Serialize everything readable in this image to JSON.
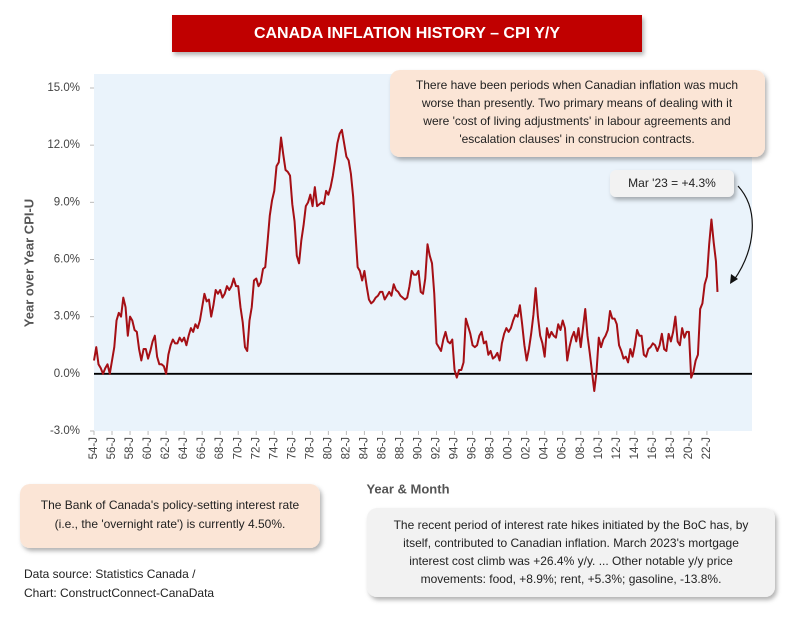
{
  "chart_data": {
    "type": "line",
    "title": "CANADA INFLATION HISTORY – CPI Y/Y",
    "ylabel": "Year over Year CPI-U",
    "xlabel": "Year & Month",
    "color": "#a50f15",
    "annotations": {
      "top": [
        "There have been periods when Canadian inflation was much",
        "worse than presently. Two primary means of dealing with it",
        "were 'cost of living adjustments' in labour agreements and",
        "'escalation clauses' in construcion contracts."
      ],
      "callout": "Mar '23 = +4.3%",
      "bank": [
        "The Bank of Canada's policy-setting interest rate",
        "(i.e., the 'overnight rate') is currently 4.50%."
      ],
      "hikes": [
        "The recent period of interest rate hikes initiated by the BoC has, by",
        "itself, contributed to Canadian inflation. March 2023's mortgage",
        "interest cost climb was +26.4% y/y. ... Other notable y/y price",
        "movements: food, +8.9%; rent, +5.3%; gasoline, -13.8%."
      ],
      "source": [
        "Data source: Statistics Canada /",
        "Chart: ConstructConnect-CanaData"
      ]
    },
    "xlim": [
      1954,
      2027
    ],
    "ylim": [
      -3,
      15
    ],
    "yticks": [
      {
        "value": -3,
        "label": "-3.0%"
      },
      {
        "value": 0,
        "label": "0.0%"
      },
      {
        "value": 3,
        "label": "3.0%"
      },
      {
        "value": 6,
        "label": "6.0%"
      },
      {
        "value": 9,
        "label": "9.0%"
      },
      {
        "value": 12,
        "label": "12.0%"
      },
      {
        "value": 15,
        "label": "15.0%"
      }
    ],
    "xticks": [
      {
        "value": 1954,
        "label": "54-J"
      },
      {
        "value": 1956,
        "label": "56-J"
      },
      {
        "value": 1958,
        "label": "58-J"
      },
      {
        "value": 1960,
        "label": "60-J"
      },
      {
        "value": 1962,
        "label": "62-J"
      },
      {
        "value": 1964,
        "label": "64-J"
      },
      {
        "value": 1966,
        "label": "66-J"
      },
      {
        "value": 1968,
        "label": "68-J"
      },
      {
        "value": 1970,
        "label": "70-J"
      },
      {
        "value": 1972,
        "label": "72-J"
      },
      {
        "value": 1974,
        "label": "74-J"
      },
      {
        "value": 1976,
        "label": "76-J"
      },
      {
        "value": 1978,
        "label": "78-J"
      },
      {
        "value": 1980,
        "label": "80-J"
      },
      {
        "value": 1982,
        "label": "82-J"
      },
      {
        "value": 1984,
        "label": "84-J"
      },
      {
        "value": 1986,
        "label": "86-J"
      },
      {
        "value": 1988,
        "label": "88-J"
      },
      {
        "value": 1990,
        "label": "90-J"
      },
      {
        "value": 1992,
        "label": "92-J"
      },
      {
        "value": 1994,
        "label": "94-J"
      },
      {
        "value": 1996,
        "label": "96-J"
      },
      {
        "value": 1998,
        "label": "98-J"
      },
      {
        "value": 2000,
        "label": "00-J"
      },
      {
        "value": 2002,
        "label": "02-J"
      },
      {
        "value": 2004,
        "label": "04-J"
      },
      {
        "value": 2006,
        "label": "06-J"
      },
      {
        "value": 2008,
        "label": "08-J"
      },
      {
        "value": 2010,
        "label": "10-J"
      },
      {
        "value": 2012,
        "label": "12-J"
      },
      {
        "value": 2014,
        "label": "14-J"
      },
      {
        "value": 2016,
        "label": "16-J"
      },
      {
        "value": 2018,
        "label": "18-J"
      },
      {
        "value": 2020,
        "label": "20-J"
      },
      {
        "value": 2022,
        "label": "22-J"
      }
    ],
    "x": [
      1954,
      1954.25,
      1954.5,
      1954.75,
      1955,
      1955.25,
      1955.5,
      1955.75,
      1956,
      1956.25,
      1956.5,
      1956.75,
      1957,
      1957.25,
      1957.5,
      1957.75,
      1958,
      1958.25,
      1958.5,
      1958.75,
      1959,
      1959.25,
      1959.5,
      1959.75,
      1960,
      1960.25,
      1960.5,
      1960.75,
      1961,
      1961.25,
      1961.5,
      1961.75,
      1962,
      1962.25,
      1962.5,
      1962.75,
      1963,
      1963.25,
      1963.5,
      1963.75,
      1964,
      1964.25,
      1964.5,
      1964.75,
      1965,
      1965.25,
      1965.5,
      1965.75,
      1966,
      1966.25,
      1966.5,
      1966.75,
      1967,
      1967.25,
      1967.5,
      1967.75,
      1968,
      1968.25,
      1968.5,
      1968.75,
      1969,
      1969.25,
      1969.5,
      1969.75,
      1970,
      1970.25,
      1970.5,
      1970.75,
      1971,
      1971.25,
      1971.5,
      1971.75,
      1972,
      1972.25,
      1972.5,
      1972.75,
      1973,
      1973.25,
      1973.5,
      1973.75,
      1974,
      1974.25,
      1974.5,
      1974.75,
      1975,
      1975.25,
      1975.5,
      1975.75,
      1976,
      1976.25,
      1976.5,
      1976.75,
      1977,
      1977.25,
      1977.5,
      1977.75,
      1978,
      1978.25,
      1978.5,
      1978.75,
      1979,
      1979.25,
      1979.5,
      1979.75,
      1980,
      1980.25,
      1980.5,
      1980.75,
      1981,
      1981.25,
      1981.5,
      1981.75,
      1982,
      1982.25,
      1982.5,
      1982.75,
      1983,
      1983.25,
      1983.5,
      1983.75,
      1984,
      1984.25,
      1984.5,
      1984.75,
      1985,
      1985.25,
      1985.5,
      1985.75,
      1986,
      1986.25,
      1986.5,
      1986.75,
      1987,
      1987.25,
      1987.5,
      1987.75,
      1988,
      1988.25,
      1988.5,
      1988.75,
      1989,
      1989.25,
      1989.5,
      1989.75,
      1990,
      1990.25,
      1990.5,
      1990.75,
      1991,
      1991.25,
      1991.5,
      1991.75,
      1992,
      1992.25,
      1992.5,
      1992.75,
      1993,
      1993.25,
      1993.5,
      1993.75,
      1994,
      1994.25,
      1994.5,
      1994.75,
      1995,
      1995.25,
      1995.5,
      1995.75,
      1996,
      1996.25,
      1996.5,
      1996.75,
      1997,
      1997.25,
      1997.5,
      1997.75,
      1998,
      1998.25,
      1998.5,
      1998.75,
      1999,
      1999.25,
      1999.5,
      1999.75,
      2000,
      2000.25,
      2000.5,
      2000.75,
      2001,
      2001.25,
      2001.5,
      2001.75,
      2002,
      2002.25,
      2002.5,
      2002.75,
      2003,
      2003.25,
      2003.5,
      2003.75,
      2004,
      2004.25,
      2004.5,
      2004.75,
      2005,
      2005.25,
      2005.5,
      2005.75,
      2006,
      2006.25,
      2006.5,
      2006.75,
      2007,
      2007.25,
      2007.5,
      2007.75,
      2008,
      2008.25,
      2008.5,
      2008.75,
      2009,
      2009.25,
      2009.5,
      2009.75,
      2010,
      2010.25,
      2010.5,
      2010.75,
      2011,
      2011.25,
      2011.5,
      2011.75,
      2012,
      2012.25,
      2012.5,
      2012.75,
      2013,
      2013.25,
      2013.5,
      2013.75,
      2014,
      2014.25,
      2014.5,
      2014.75,
      2015,
      2015.25,
      2015.5,
      2015.75,
      2016,
      2016.25,
      2016.5,
      2016.75,
      2017,
      2017.25,
      2017.5,
      2017.75,
      2018,
      2018.25,
      2018.5,
      2018.75,
      2019,
      2019.25,
      2019.5,
      2019.75,
      2020,
      2020.25,
      2020.5,
      2020.75,
      2021,
      2021.25,
      2021.5,
      2021.75,
      2022,
      2022.25,
      2022.5,
      2022.75,
      2023,
      2023.17
    ],
    "values": [
      0.7,
      1.4,
      0.5,
      0.3,
      0.0,
      0.3,
      0.5,
      0.0,
      0.7,
      1.4,
      2.8,
      3.2,
      3.0,
      4.0,
      3.5,
      2.0,
      3.0,
      2.8,
      2.3,
      2.2,
      1.3,
      0.7,
      1.3,
      1.3,
      0.8,
      1.2,
      1.7,
      2.0,
      0.9,
      0.5,
      0.5,
      0.4,
      0.0,
      1.0,
      1.5,
      1.8,
      1.6,
      1.6,
      1.9,
      1.7,
      1.9,
      1.5,
      2.0,
      2.4,
      2.2,
      2.6,
      2.4,
      2.8,
      3.5,
      4.2,
      3.8,
      3.9,
      3.0,
      3.6,
      4.4,
      4.2,
      4.4,
      4.0,
      4.2,
      4.6,
      4.4,
      4.6,
      5.0,
      4.6,
      4.6,
      3.5,
      2.7,
      1.4,
      1.2,
      2.8,
      3.5,
      4.9,
      5.0,
      4.6,
      4.8,
      5.5,
      5.6,
      6.9,
      8.3,
      9.1,
      9.6,
      10.9,
      11.1,
      12.4,
      11.5,
      10.7,
      10.6,
      10.4,
      8.9,
      8.0,
      6.2,
      5.8,
      7.0,
      7.8,
      8.8,
      9.0,
      9.4,
      8.8,
      9.8,
      8.8,
      8.9,
      9.0,
      8.9,
      9.6,
      9.4,
      9.8,
      10.4,
      11.2,
      12.1,
      12.6,
      12.8,
      12.1,
      11.4,
      11.2,
      10.5,
      9.3,
      7.4,
      5.6,
      5.4,
      4.9,
      5.4,
      4.6,
      3.9,
      3.7,
      3.8,
      4.0,
      4.1,
      4.3,
      4.3,
      3.9,
      4.1,
      4.3,
      4.1,
      4.7,
      4.4,
      4.3,
      4.1,
      4.0,
      3.9,
      4.0,
      4.6,
      5.4,
      5.2,
      5.2,
      5.4,
      4.3,
      4.2,
      5.0,
      6.8,
      6.2,
      5.8,
      4.2,
      1.6,
      1.4,
      1.2,
      1.8,
      2.2,
      1.7,
      1.6,
      1.8,
      0.2,
      -0.2,
      0.2,
      0.2,
      0.6,
      2.9,
      2.5,
      2.1,
      1.5,
      1.4,
      1.5,
      2.0,
      2.2,
      1.6,
      1.7,
      1.0,
      1.2,
      0.8,
      0.9,
      1.1,
      0.7,
      1.6,
      2.1,
      2.4,
      2.2,
      2.4,
      2.8,
      3.1,
      3.0,
      3.6,
      2.6,
      1.5,
      0.7,
      1.3,
      2.1,
      3.1,
      4.5,
      3.0,
      2.0,
      1.6,
      0.9,
      2.4,
      1.9,
      2.2,
      2.0,
      1.9,
      2.6,
      2.3,
      2.8,
      2.4,
      0.7,
      1.4,
      1.9,
      2.2,
      1.7,
      2.4,
      1.4,
      2.4,
      3.4,
      2.0,
      1.1,
      0.1,
      -0.9,
      0.1,
      1.9,
      1.4,
      1.8,
      2.0,
      2.3,
      3.3,
      2.9,
      2.9,
      2.6,
      1.5,
      1.2,
      0.8,
      0.9,
      0.6,
      1.3,
      0.9,
      1.5,
      2.3,
      2.0,
      2.0,
      1.0,
      0.9,
      1.3,
      1.4,
      1.6,
      1.5,
      1.2,
      1.5,
      2.1,
      1.3,
      1.2,
      2.1,
      1.7,
      2.2,
      3.0,
      1.7,
      1.5,
      2.4,
      1.9,
      2.2,
      2.2,
      -0.2,
      0.1,
      0.7,
      1.0,
      3.4,
      3.7,
      4.7,
      5.1,
      6.8,
      8.1,
      6.9,
      5.9,
      4.3
    ]
  }
}
